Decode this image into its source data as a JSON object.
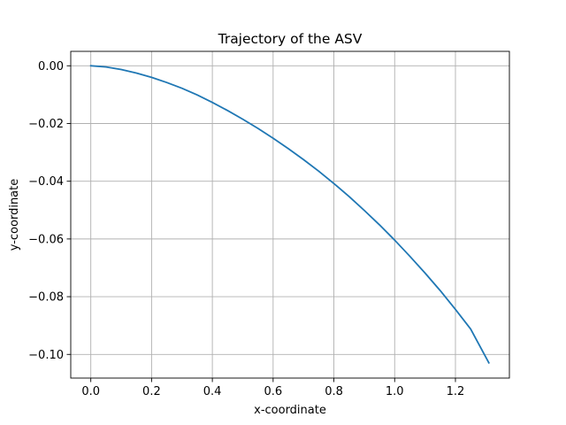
{
  "chart_data": {
    "type": "line",
    "title": "Trajectory of the ASV",
    "xlabel": "x-coordinate",
    "ylabel": "y-coordinate",
    "xlim": [
      -0.066,
      1.3776
    ],
    "ylim": [
      -0.1082,
      0.005
    ],
    "xticks": [
      0.0,
      0.2,
      0.4,
      0.6,
      0.8,
      1.0,
      1.2
    ],
    "xtick_labels": [
      "0.0",
      "0.2",
      "0.4",
      "0.6",
      "0.8",
      "1.0",
      "1.2"
    ],
    "yticks": [
      0.0,
      -0.02,
      -0.04,
      -0.06,
      -0.08,
      -0.1
    ],
    "ytick_labels": [
      "0.00",
      "−0.02",
      "−0.04",
      "−0.06",
      "−0.08",
      "−0.10"
    ],
    "grid": true,
    "series": [
      {
        "color": "#1f77b4",
        "x": [
          0.0,
          0.05,
          0.1,
          0.15,
          0.2,
          0.25,
          0.3,
          0.35,
          0.4,
          0.45,
          0.5,
          0.55,
          0.6,
          0.65,
          0.7,
          0.75,
          0.8,
          0.85,
          0.9,
          0.95,
          1.0,
          1.05,
          1.1,
          1.15,
          1.2,
          1.25,
          1.31
        ],
        "y": [
          0.0,
          -0.0004,
          -0.0013,
          -0.0025,
          -0.004,
          -0.0058,
          -0.0078,
          -0.0101,
          -0.0127,
          -0.0155,
          -0.0185,
          -0.0217,
          -0.0251,
          -0.0287,
          -0.0325,
          -0.0365,
          -0.0408,
          -0.0453,
          -0.0501,
          -0.0551,
          -0.0604,
          -0.066,
          -0.0718,
          -0.0779,
          -0.0844,
          -0.0912,
          -0.1029
        ]
      }
    ]
  }
}
